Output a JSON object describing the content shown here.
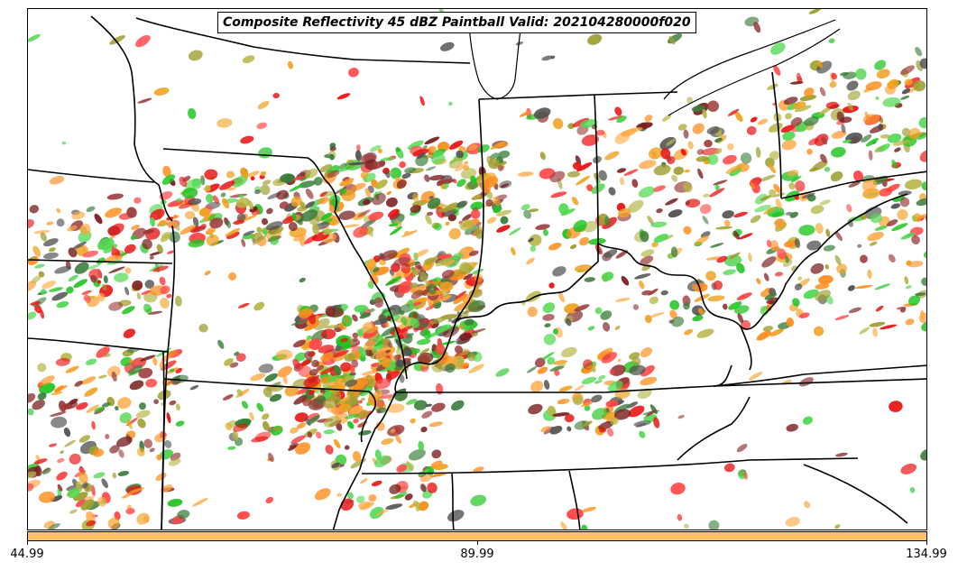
{
  "title": "Composite Reflectivity 45 dBZ Paintball Valid: 202104280000f020",
  "colors": {
    "paintball_palette": [
      "#e81010",
      "#ff4444",
      "#ff8c1a",
      "#ffa640",
      "#f0a020",
      "#b5b545",
      "#9e9e30",
      "#1fc41f",
      "#4fd84f",
      "#3a7d3a",
      "#9a3a3a",
      "#7a2020",
      "#505050"
    ],
    "colorbar": "#ffc266",
    "boundaries": "#000000"
  },
  "colorbar": {
    "ticks": [
      {
        "value": "44.99"
      },
      {
        "value": "89.99"
      },
      {
        "value": "134.99"
      }
    ]
  }
}
